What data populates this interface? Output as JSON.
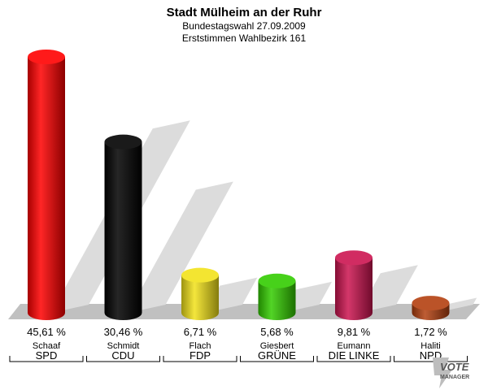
{
  "chart_data": {
    "type": "bar",
    "title": "Stadt Mülheim an der Ruhr",
    "subtitle": [
      "Bundestagswahl 27.09.2009",
      "Erststimmen Wahlbezirk 161"
    ],
    "categories": [
      "SPD",
      "CDU",
      "FDP",
      "GRÜNE",
      "DIE LINKE",
      "NPD"
    ],
    "candidates": [
      "Schaaf",
      "Schmidt",
      "Flach",
      "Giesbert",
      "Eumann",
      "Haliti"
    ],
    "values": [
      45.61,
      30.46,
      6.71,
      5.68,
      9.81,
      1.72
    ],
    "value_labels": [
      "45,61 %",
      "30,46 %",
      "6,71 %",
      "5,68 %",
      "9,81 %",
      "1,72 %"
    ],
    "colors": [
      "#ff0000",
      "#000000",
      "#f2e21a",
      "#33cc00",
      "#cc1450",
      "#b34010"
    ],
    "ylim": [
      0,
      45.61
    ],
    "grid": false,
    "legend": "none"
  },
  "logo": {
    "text": "VOTE",
    "sub": "MANAGER"
  }
}
